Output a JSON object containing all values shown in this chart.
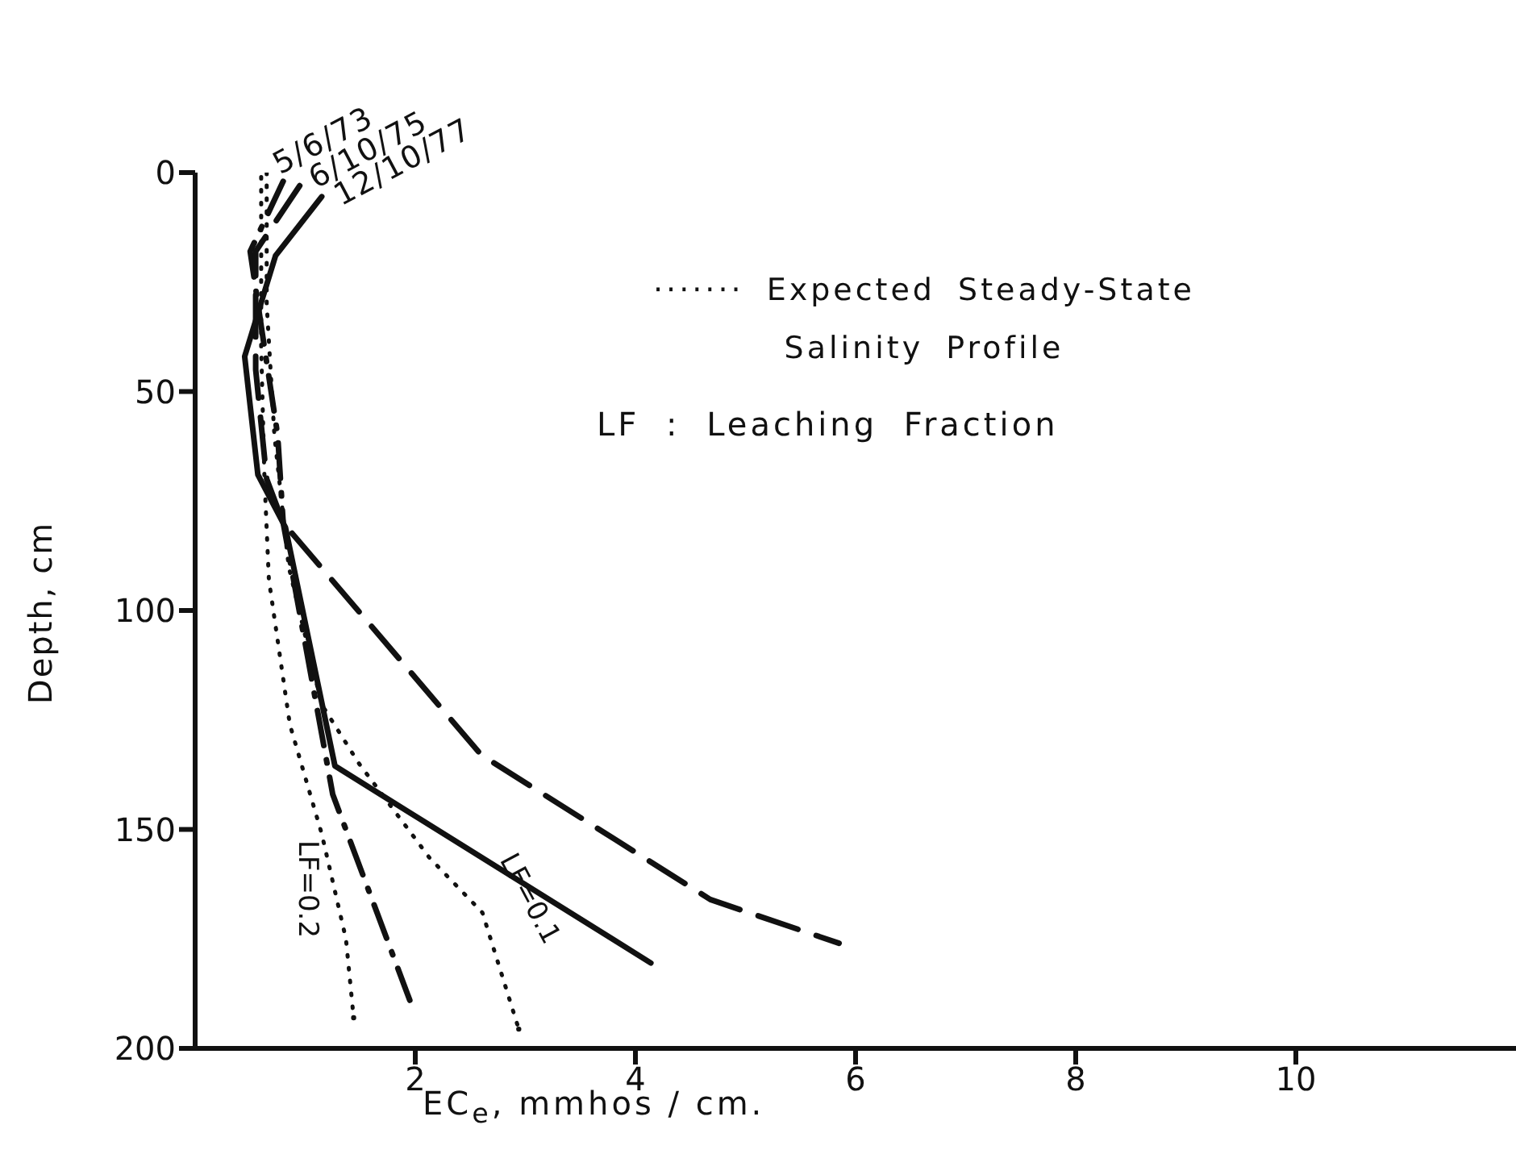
{
  "chart_data": {
    "type": "line",
    "xlabel": "EC$_{e}$, mmhos / cm.",
    "ylabel": "Depth, cm",
    "xlim": [
      0,
      12
    ],
    "xticks": [
      2,
      4,
      6,
      8,
      10
    ],
    "ylim": [
      200,
      0
    ],
    "yticks": [
      0,
      50,
      100,
      150,
      200
    ],
    "grid": false,
    "marker": "none",
    "annotations": [
      "······· Expected Steady-State Salinity Profile",
      "LF : Leaching Fraction"
    ],
    "series": [
      {
        "name": "5/6/73",
        "color": "#111111",
        "line_style": "dashdot",
        "x": [
          0.8,
          0.5,
          0.6,
          0.75,
          0.8,
          1.25,
          1.95
        ],
        "values": [
          2,
          18,
          35,
          60,
          80,
          142,
          189
        ]
      },
      {
        "name": "6/10/75",
        "color": "#111111",
        "line_style": "dashed",
        "x": [
          0.95,
          0.55,
          0.55,
          0.65,
          0.8,
          2.6,
          4.68,
          5.85
        ],
        "values": [
          3,
          18,
          45,
          70,
          80,
          133,
          166,
          176
        ]
      },
      {
        "name": "12/10/77",
        "color": "#111111",
        "line_style": "solid",
        "x": [
          1.15,
          0.73,
          0.45,
          0.57,
          0.82,
          1.27,
          4.14
        ],
        "values": [
          5.5,
          19,
          42,
          69,
          81,
          135.5,
          180.5
        ]
      },
      {
        "name": "LF=0.2",
        "color": "#111111",
        "line_style": "dotted",
        "x": [
          0.6,
          0.6,
          0.63,
          0.67,
          0.86,
          1.15,
          1.37,
          1.44
        ],
        "values": [
          1,
          40,
          70,
          93,
          126,
          151,
          175,
          193
        ]
      },
      {
        "name": "LF=0.1",
        "color": "#111111",
        "line_style": "dotted",
        "x": [
          0.65,
          0.65,
          0.72,
          0.85,
          1.15,
          1.49,
          2.13,
          2.61,
          2.94
        ],
        "values": [
          0,
          30,
          60,
          90,
          121.5,
          135,
          156.5,
          169,
          195.6
        ]
      }
    ]
  }
}
